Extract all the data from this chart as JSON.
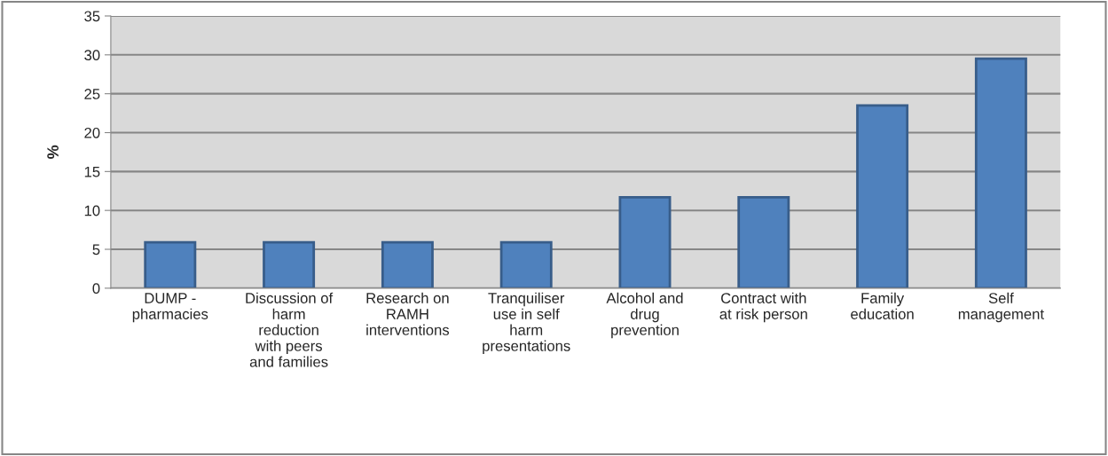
{
  "chart_data": {
    "type": "bar",
    "ylabel": "%",
    "categories": [
      "DUMP -\npharmacies",
      "Discussion of\nharm\nreduction\nwith peers\nand families",
      "Research on\nRAMH\ninterventions",
      "Tranquiliser\nuse in self\nharm\npresentations",
      "Alcohol and\ndrug\nprevention",
      "Contract with\nat risk person",
      "Family\neducation",
      "Self\nmanagement"
    ],
    "values": [
      5.9,
      5.9,
      5.9,
      5.9,
      11.7,
      11.7,
      23.5,
      29.5
    ],
    "color": "#4f81bd",
    "ylim": [
      0,
      35
    ],
    "yticks": [
      0,
      5,
      10,
      15,
      20,
      25,
      30,
      35
    ],
    "grid": "y"
  }
}
